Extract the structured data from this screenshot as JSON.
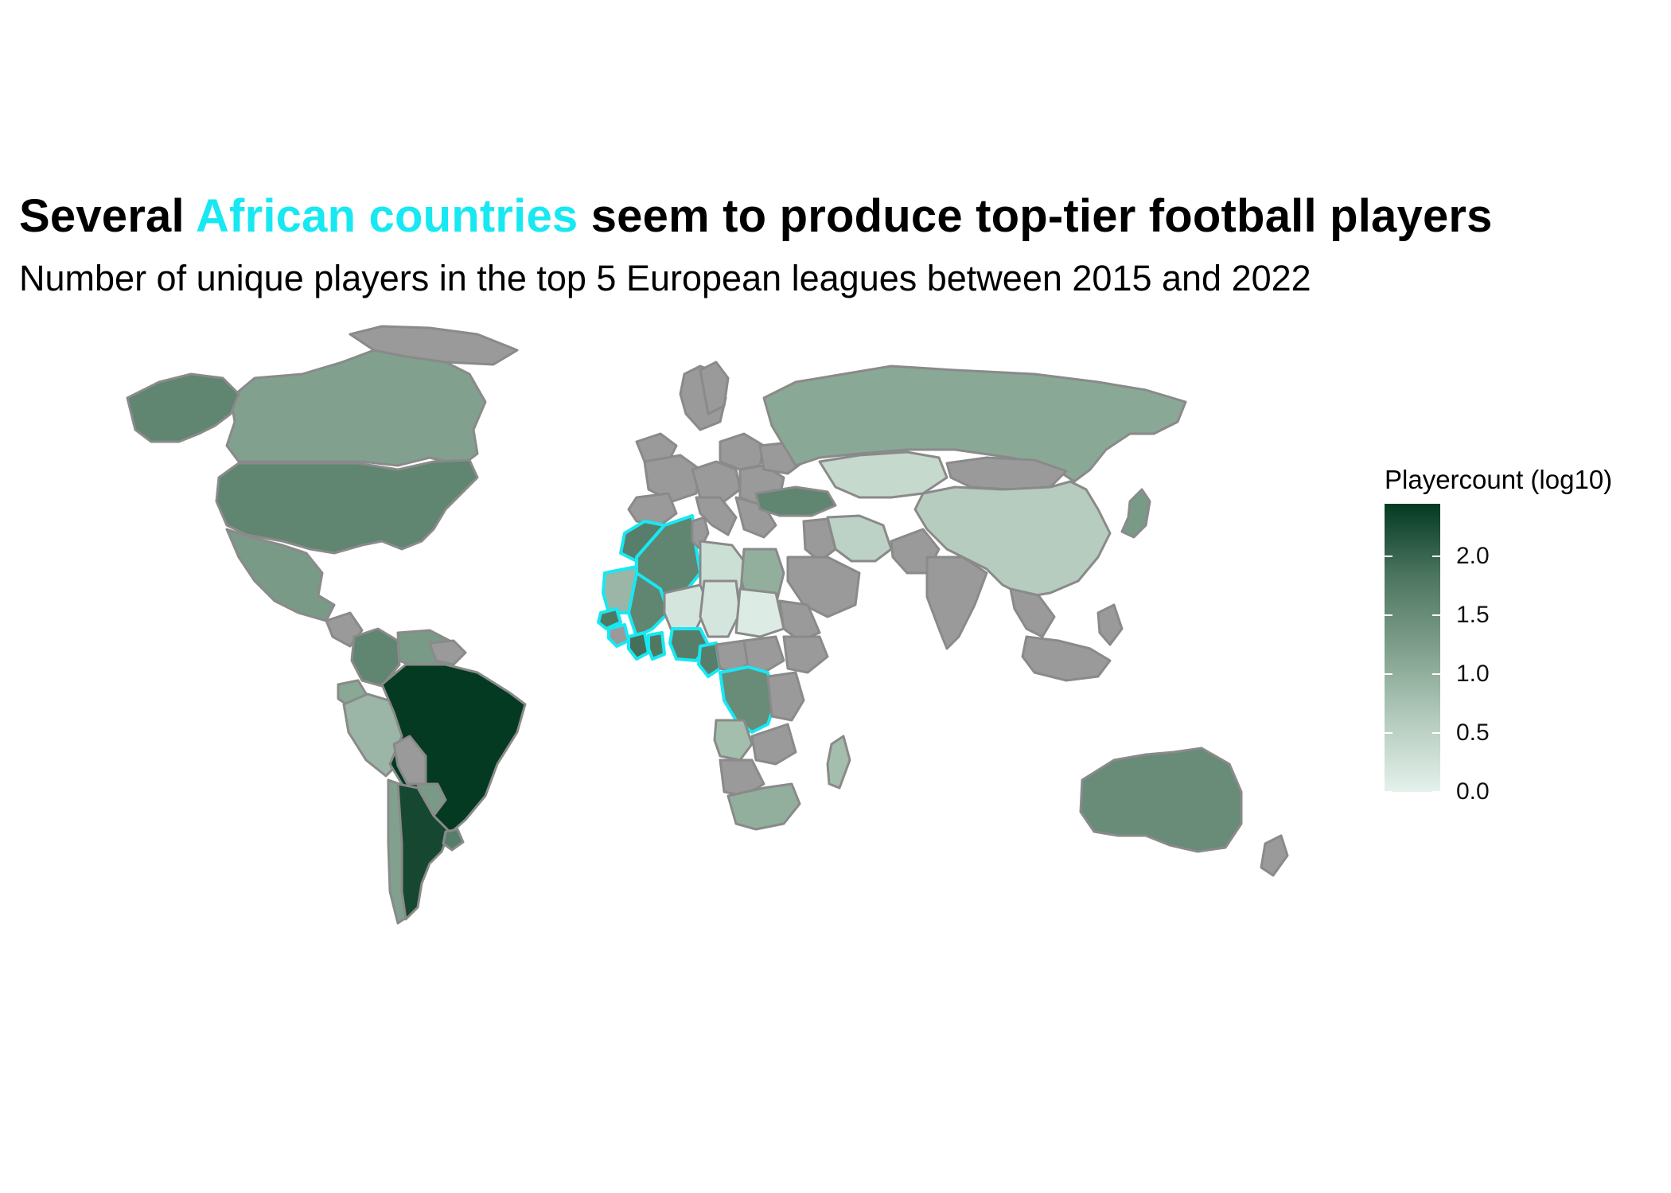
{
  "title": {
    "before": "Several ",
    "highlight": "African countries",
    "after": " seem to produce top-tier football players"
  },
  "subtitle": "Number of unique players in the top 5 European leagues between 2015 and 2022",
  "legend": {
    "title": "Playercount (log10)",
    "ticks": [
      {
        "value": 0.0,
        "label": "0.0"
      },
      {
        "value": 0.5,
        "label": "0.5"
      },
      {
        "value": 1.0,
        "label": "1.0"
      },
      {
        "value": 1.5,
        "label": "1.5"
      },
      {
        "value": 2.0,
        "label": "2.0"
      }
    ],
    "max": 2.45,
    "colors": {
      "low": "#e4f2ec",
      "high": "#043a22",
      "missing": "#9a9a9a",
      "highlight_border": "#17e8f2"
    }
  },
  "chart_data": {
    "type": "choropleth",
    "value_label": "Playercount (log10)",
    "range": [
      0,
      2.45
    ],
    "regions": [
      {
        "name": "Brazil",
        "value": 2.45
      },
      {
        "name": "Argentina",
        "value": 2.3
      },
      {
        "name": "Colombia",
        "value": 1.6
      },
      {
        "name": "Venezuela",
        "value": 1.3
      },
      {
        "name": "Uruguay",
        "value": 1.7
      },
      {
        "name": "Paraguay",
        "value": 1.3
      },
      {
        "name": "Chile",
        "value": 1.2
      },
      {
        "name": "Ecuador",
        "value": 1.1
      },
      {
        "name": "Peru",
        "value": 0.9
      },
      {
        "name": "United States",
        "value": 1.6
      },
      {
        "name": "Canada",
        "value": 1.2
      },
      {
        "name": "Mexico",
        "value": 1.3
      },
      {
        "name": "Greenland",
        "value": 1.6
      },
      {
        "name": "Russia",
        "value": 1.1
      },
      {
        "name": "China",
        "value": 0.6
      },
      {
        "name": "Kazakhstan",
        "value": 0.4
      },
      {
        "name": "Iran",
        "value": 0.5
      },
      {
        "name": "Japan",
        "value": 1.3
      },
      {
        "name": "Australia",
        "value": 1.5
      },
      {
        "name": "Turkey",
        "value": 1.6
      },
      {
        "name": "Morocco",
        "value": 1.7
      },
      {
        "name": "Algeria",
        "value": 1.6
      },
      {
        "name": "Mali",
        "value": 1.6
      },
      {
        "name": "Senegal",
        "value": 1.8
      },
      {
        "name": "Mauritania",
        "value": 0.9
      },
      {
        "name": "Ivory Coast",
        "value": 1.9
      },
      {
        "name": "Ghana",
        "value": 1.8
      },
      {
        "name": "Nigeria",
        "value": 1.7
      },
      {
        "name": "Cameroon",
        "value": 1.7
      },
      {
        "name": "DR Congo",
        "value": 1.5
      },
      {
        "name": "Egypt",
        "value": 1.0
      },
      {
        "name": "Libya",
        "value": 0.3
      },
      {
        "name": "Niger",
        "value": 0.2
      },
      {
        "name": "Chad",
        "value": 0.2
      },
      {
        "name": "Sudan",
        "value": 0.1
      },
      {
        "name": "Angola",
        "value": 0.8
      },
      {
        "name": "South Africa",
        "value": 1.0
      },
      {
        "name": "Madagascar",
        "value": 0.8
      }
    ]
  }
}
